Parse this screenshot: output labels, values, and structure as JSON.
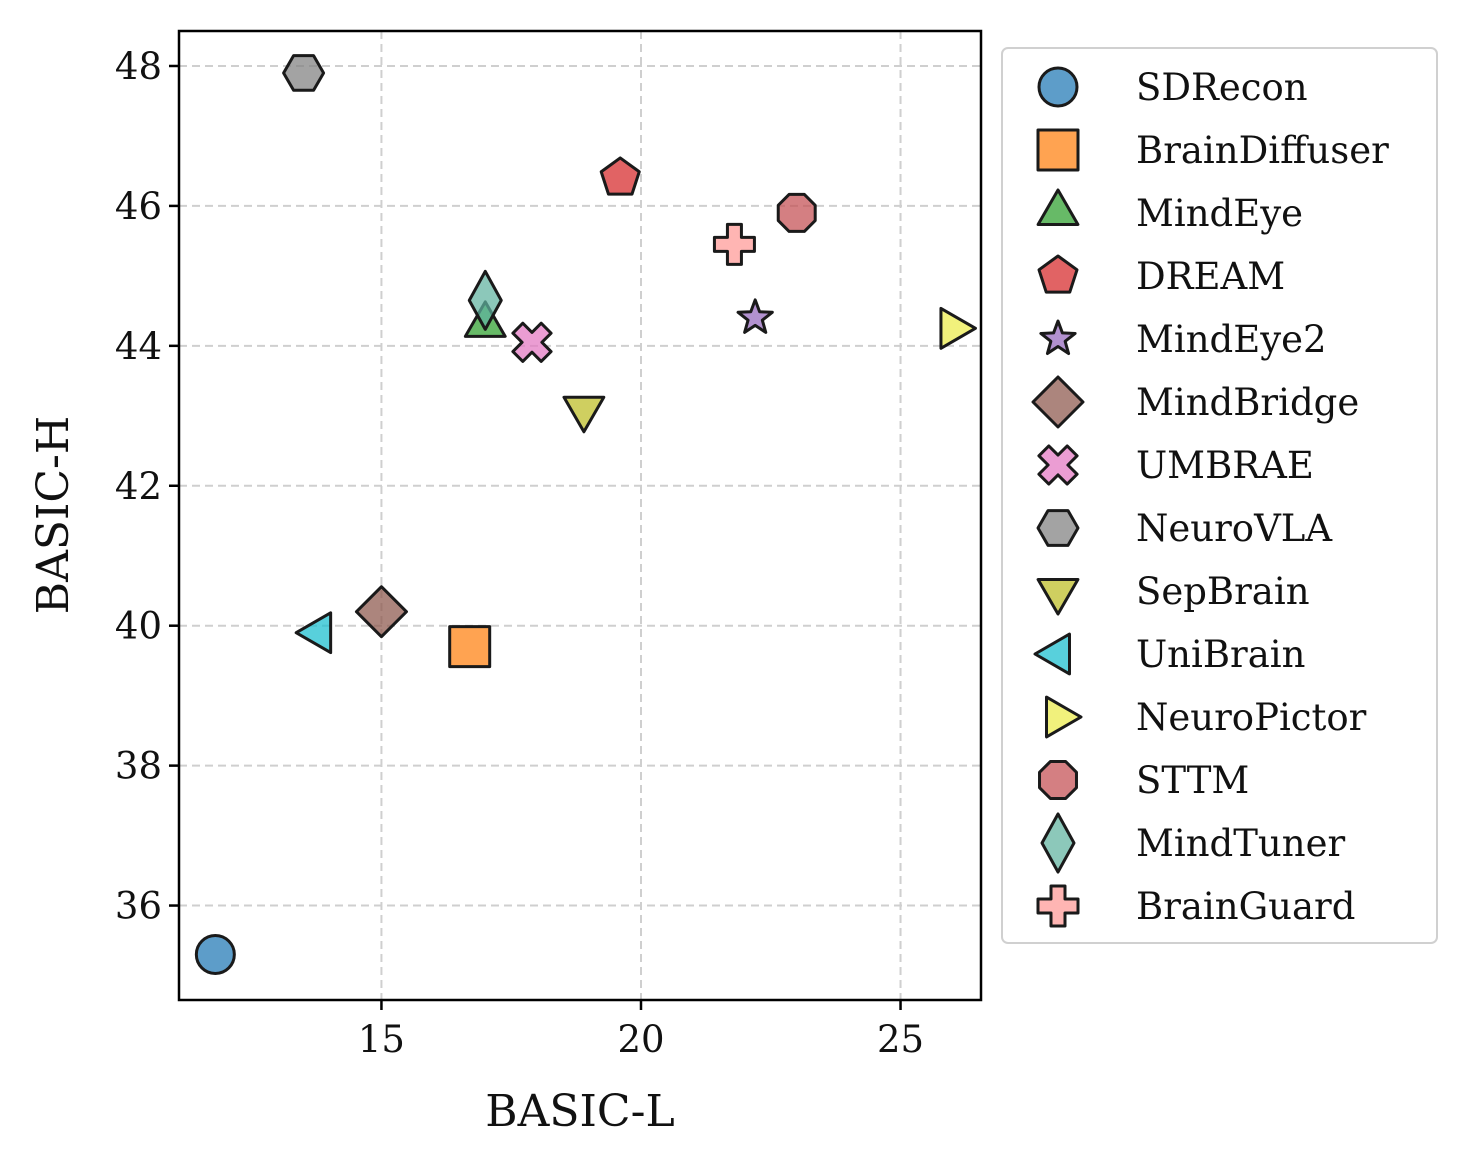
{
  "chart_data": {
    "type": "scatter",
    "title": "",
    "xlabel": "BASIC-L",
    "ylabel": "BASIC-H",
    "xlim": [
      11.1,
      26.55
    ],
    "ylim": [
      34.65,
      48.5
    ],
    "xticks": [
      15,
      20,
      25
    ],
    "yticks": [
      36,
      38,
      40,
      42,
      44,
      46,
      48
    ],
    "grid": true,
    "legend_position": "outside-right",
    "points": [
      {
        "name": "SDRecon",
        "x": 11.8,
        "y": 35.3,
        "marker": "circle",
        "color": "#1f77b4"
      },
      {
        "name": "BrainDiffuser",
        "x": 16.7,
        "y": 39.7,
        "marker": "square",
        "color": "#ff7f0e"
      },
      {
        "name": "MindEye",
        "x": 17.0,
        "y": 44.3,
        "marker": "triangle-up",
        "color": "#2ca02c"
      },
      {
        "name": "DREAM",
        "x": 19.6,
        "y": 46.4,
        "marker": "pentagon",
        "color": "#d62728"
      },
      {
        "name": "MindEye2",
        "x": 22.2,
        "y": 44.4,
        "marker": "star",
        "color": "#9467bd"
      },
      {
        "name": "MindBridge",
        "x": 15.0,
        "y": 40.2,
        "marker": "diamond",
        "color": "#8c564b"
      },
      {
        "name": "UMBRAE",
        "x": 17.9,
        "y": 44.05,
        "marker": "x",
        "color": "#e377c2"
      },
      {
        "name": "NeuroVLA",
        "x": 13.5,
        "y": 47.9,
        "marker": "hexagon",
        "color": "#7f7f7f"
      },
      {
        "name": "SepBrain",
        "x": 18.9,
        "y": 43.1,
        "marker": "triangle-down",
        "color": "#bcbd22"
      },
      {
        "name": "UniBrain",
        "x": 13.8,
        "y": 39.9,
        "marker": "triangle-left",
        "color": "#17becf"
      },
      {
        "name": "NeuroPictor",
        "x": 26.0,
        "y": 44.25,
        "marker": "triangle-right",
        "color": "#ecec4a"
      },
      {
        "name": "STTM",
        "x": 23.0,
        "y": 45.9,
        "marker": "octagon",
        "color": "#c44e52"
      },
      {
        "name": "MindTuner",
        "x": 17.0,
        "y": 44.65,
        "marker": "thin-diamond",
        "color": "#5fb3a0"
      },
      {
        "name": "BrainGuard",
        "x": 21.8,
        "y": 45.45,
        "marker": "plus",
        "color": "#ff9896"
      }
    ]
  }
}
